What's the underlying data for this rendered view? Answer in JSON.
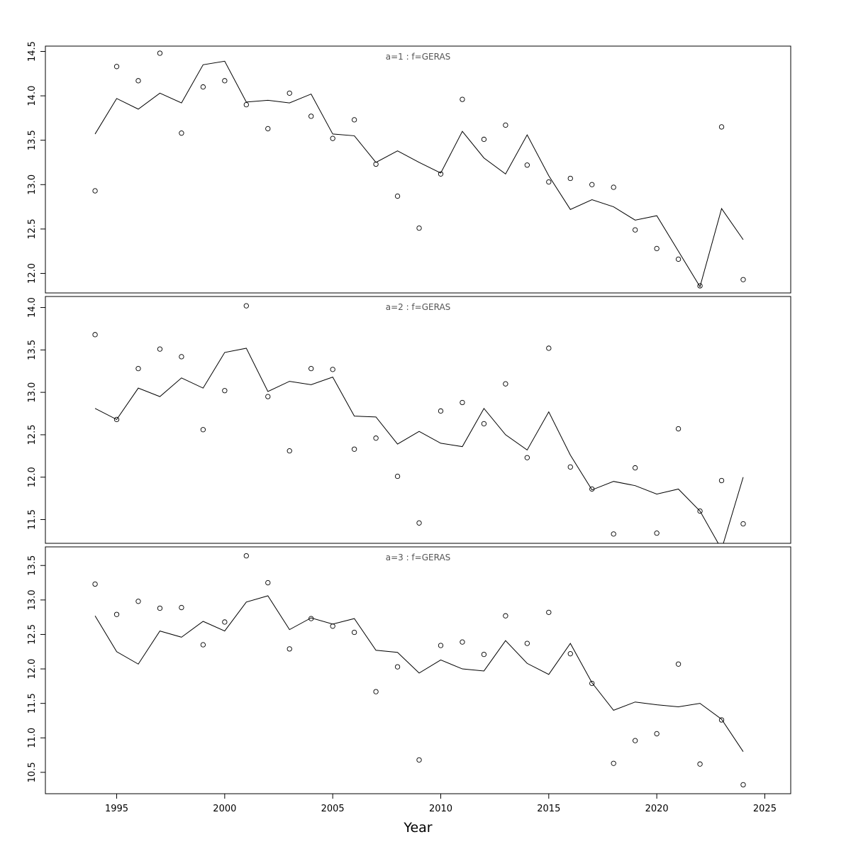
{
  "figure": {
    "background": "#ffffff",
    "foreground": "#000000",
    "panel_label_color": "#555555"
  },
  "chart_data": {
    "type": "scatter",
    "title": "",
    "xlabel": "Year",
    "grid": false,
    "legend": "none",
    "xlim": [
      1991.7,
      2026.2
    ],
    "xticks": [
      1995,
      2000,
      2005,
      2010,
      2015,
      2020,
      2025
    ],
    "x": [
      1994,
      1995,
      1996,
      1997,
      1998,
      1999,
      2000,
      2001,
      2002,
      2003,
      2004,
      2005,
      2006,
      2007,
      2008,
      2009,
      2010,
      2011,
      2012,
      2013,
      2014,
      2015,
      2016,
      2017,
      2018,
      2019,
      2020,
      2021,
      2022,
      2023,
      2024
    ],
    "panels": [
      {
        "label": "a=1 : f=GERAS",
        "ylim": [
          11.78,
          14.56
        ],
        "yticks": [
          "12.0",
          "12.5",
          "13.0",
          "13.5",
          "14.0",
          "14.5"
        ],
        "series": [
          {
            "name": "observed",
            "type": "points",
            "values": [
              12.93,
              14.33,
              14.17,
              14.48,
              13.58,
              14.1,
              14.17,
              13.9,
              13.63,
              14.03,
              13.77,
              13.52,
              13.73,
              13.23,
              12.87,
              12.51,
              13.12,
              13.96,
              13.51,
              13.67,
              13.22,
              13.03,
              13.07,
              13.0,
              12.97,
              12.49,
              12.28,
              12.16,
              11.86,
              13.65,
              11.93
            ]
          },
          {
            "name": "fitted",
            "type": "line",
            "values": [
              13.57,
              13.97,
              13.85,
              14.03,
              13.92,
              14.35,
              14.39,
              13.93,
              13.95,
              13.92,
              14.02,
              13.57,
              13.55,
              13.25,
              13.38,
              13.25,
              13.13,
              13.6,
              13.3,
              13.12,
              13.56,
              13.1,
              12.72,
              12.83,
              12.75,
              12.6,
              12.65,
              12.25,
              11.85,
              12.73,
              12.38
            ]
          }
        ]
      },
      {
        "label": "a=2 : f=GERAS",
        "ylim": [
          11.22,
          14.13
        ],
        "yticks": [
          "11.5",
          "12.0",
          "12.5",
          "13.0",
          "13.5",
          "14.0"
        ],
        "series": [
          {
            "name": "observed",
            "type": "points",
            "values": [
              13.68,
              12.68,
              13.28,
              13.51,
              13.42,
              12.56,
              13.02,
              14.02,
              12.95,
              12.31,
              13.28,
              13.27,
              12.33,
              12.46,
              12.01,
              11.46,
              12.78,
              12.88,
              12.63,
              13.1,
              12.23,
              13.52,
              12.12,
              11.86,
              11.33,
              12.11,
              11.34,
              12.57,
              11.6,
              11.96,
              11.45
            ]
          },
          {
            "name": "fitted",
            "type": "line",
            "values": [
              12.81,
              12.68,
              13.05,
              12.95,
              13.17,
              13.05,
              13.47,
              13.52,
              13.01,
              13.13,
              13.09,
              13.18,
              12.72,
              12.71,
              12.39,
              12.54,
              12.4,
              12.36,
              12.81,
              12.5,
              12.32,
              12.77,
              12.26,
              11.85,
              11.95,
              11.9,
              11.8,
              11.86,
              11.6,
              11.15,
              12.0
            ]
          }
        ]
      },
      {
        "label": "a=3 : f=GERAS",
        "ylim": [
          10.19,
          13.77
        ],
        "yticks": [
          "10.5",
          "11.0",
          "11.5",
          "12.0",
          "12.5",
          "13.0",
          "13.5"
        ],
        "series": [
          {
            "name": "observed",
            "type": "points",
            "values": [
              13.23,
              12.79,
              12.98,
              12.88,
              12.89,
              12.35,
              12.68,
              13.64,
              13.25,
              12.29,
              12.73,
              12.62,
              12.53,
              11.67,
              12.03,
              10.68,
              12.34,
              12.39,
              12.21,
              12.77,
              12.37,
              12.82,
              12.22,
              11.79,
              10.63,
              10.96,
              11.06,
              12.07,
              10.62,
              11.26,
              10.32
            ]
          },
          {
            "name": "fitted",
            "type": "line",
            "values": [
              12.77,
              12.25,
              12.07,
              12.55,
              12.46,
              12.69,
              12.55,
              12.97,
              13.06,
              12.57,
              12.74,
              12.65,
              12.73,
              12.27,
              12.24,
              11.94,
              12.13,
              12.0,
              11.97,
              12.41,
              12.08,
              11.92,
              12.37,
              11.8,
              11.4,
              11.52,
              11.48,
              11.45,
              11.5,
              11.27,
              10.8
            ]
          }
        ]
      }
    ]
  }
}
